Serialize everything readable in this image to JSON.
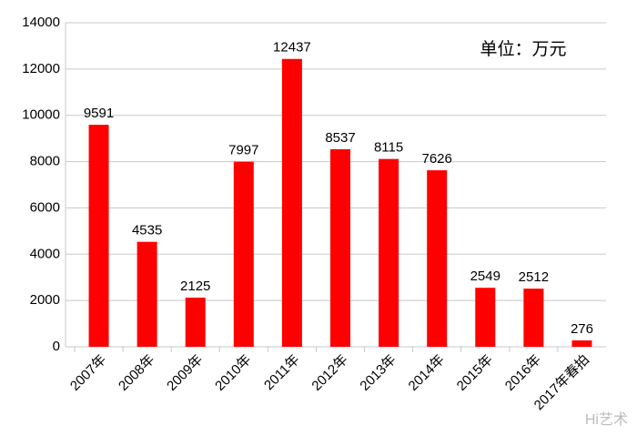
{
  "chart_data": {
    "type": "bar",
    "annotation": "单位：万元",
    "watermark": "Hi艺术",
    "categories": [
      "2007年",
      "2008年",
      "2009年",
      "2010年",
      "2011年",
      "2012年",
      "2013年",
      "2014年",
      "2015年",
      "2016年",
      "2017年春拍"
    ],
    "values": [
      9591,
      4535,
      2125,
      7997,
      12437,
      8537,
      8115,
      7626,
      2549,
      2512,
      276
    ],
    "color": "#ff0000",
    "ylim": [
      0,
      14000
    ],
    "yticks": [
      0,
      2000,
      4000,
      6000,
      8000,
      10000,
      12000,
      14000
    ],
    "grid": true
  }
}
